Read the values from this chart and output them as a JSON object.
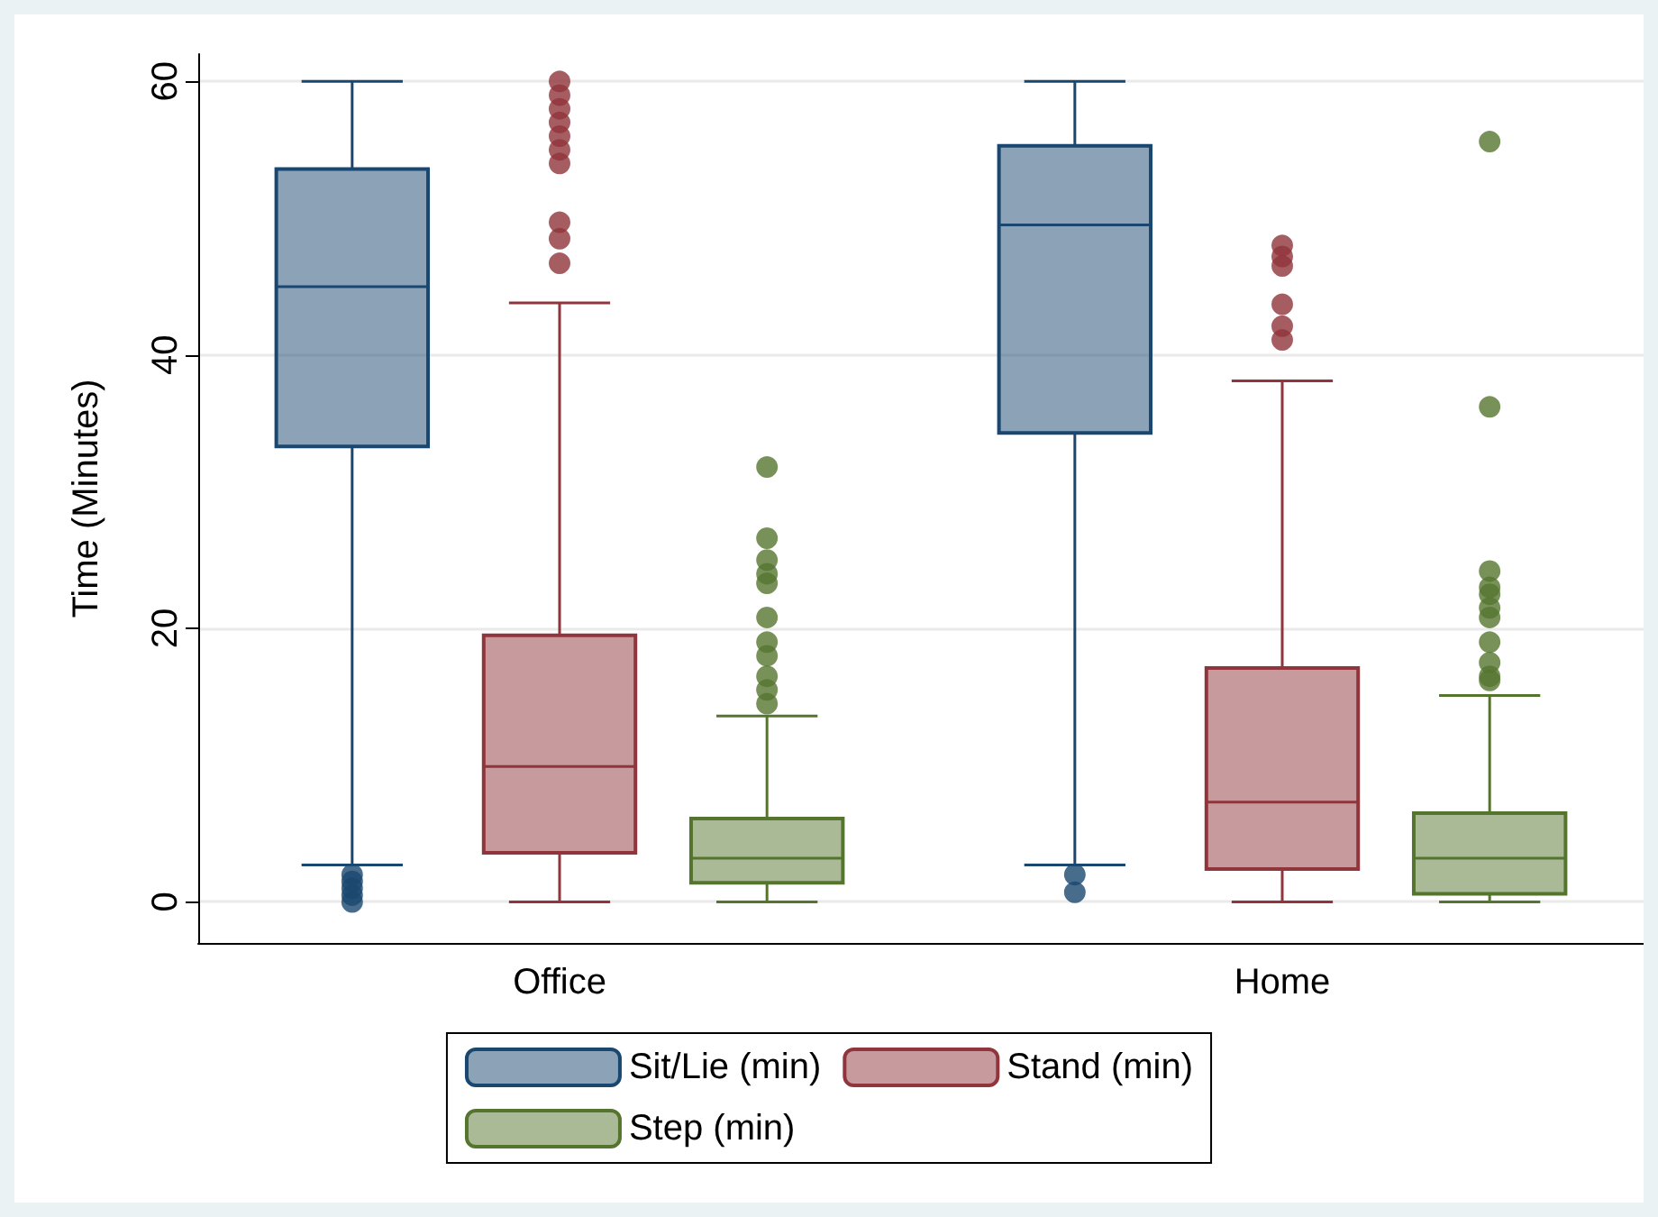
{
  "chart_data": {
    "type": "box",
    "categories": [
      "Office",
      "Home"
    ],
    "ylabel": "Time (Minutes)",
    "ylim": [
      -3,
      62
    ],
    "yticks": [
      0,
      20,
      40,
      60
    ],
    "grid": "y",
    "legend": "bottom",
    "series": [
      {
        "name": "Sit/Lie (min)",
        "color": "#1a476f",
        "boxes": [
          {
            "low": 2.7,
            "q1": 33.3,
            "median": 45.0,
            "q3": 53.6,
            "high": 60,
            "outliers": [
              0,
              0.5,
              1,
              1.5,
              2
            ]
          },
          {
            "low": 2.7,
            "q1": 34.3,
            "median": 49.5,
            "q3": 55.3,
            "high": 60,
            "outliers": [
              0.7,
              2.0
            ]
          }
        ]
      },
      {
        "name": "Stand (min)",
        "color": "#90353b",
        "boxes": [
          {
            "low": 0,
            "q1": 3.6,
            "median": 9.9,
            "q3": 19.5,
            "high": 43.8,
            "outliers": [
              46.7,
              48.5,
              49.7,
              54,
              55,
              56,
              57,
              58,
              59,
              60
            ]
          },
          {
            "low": 0,
            "q1": 2.4,
            "median": 7.3,
            "q3": 17.1,
            "high": 38.1,
            "outliers": [
              41.1,
              42.1,
              43.7,
              46.5,
              47.2,
              48.0
            ]
          }
        ]
      },
      {
        "name": "Step (min)",
        "color": "#55752f",
        "boxes": [
          {
            "low": 0,
            "q1": 1.4,
            "median": 3.2,
            "q3": 6.1,
            "high": 13.6,
            "outliers": [
              14.5,
              15.5,
              16.5,
              18,
              19,
              20.8,
              23.3,
              24,
              25,
              26.6,
              31.8
            ]
          },
          {
            "low": 0,
            "q1": 0.6,
            "median": 3.2,
            "q3": 6.5,
            "high": 15.1,
            "outliers": [
              16.2,
              16.5,
              17.5,
              19,
              20.8,
              21.5,
              22.5,
              23,
              24.2,
              36.2,
              55.6
            ]
          }
        ]
      }
    ]
  }
}
